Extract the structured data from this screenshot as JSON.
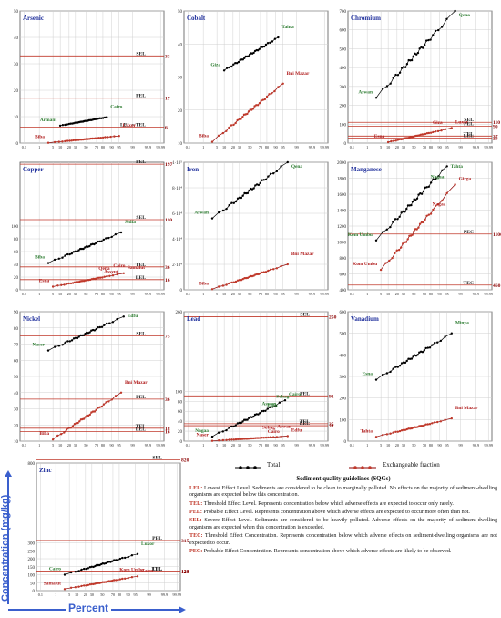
{
  "axis_titles": {
    "y": "Concentration (mg/kg)",
    "x": "Percent"
  },
  "legend": {
    "total": "Total",
    "exchangeable": "Exchangeable fraction"
  },
  "colors": {
    "total": "#000000",
    "exchangeable": "#8b0000",
    "guideline": "#c0392b",
    "title": "#1f2f9c",
    "label_total": "#2e7d32",
    "label_exch": "#b22222",
    "arrow": "#3a5fcd"
  },
  "percent_ticks": [
    "0.1",
    "1",
    "5",
    "10",
    "20",
    "30",
    "50",
    "70",
    "80",
    "90",
    "95",
    "99",
    "99.9",
    "99.99"
  ],
  "sqg": {
    "title": "Sediment quality guidelines (SQGs)",
    "definitions": [
      {
        "code": "LEL:",
        "text": "Lowest Effect Level. Sediments are considered to be clean to marginally polluted. No effects on the majority of sediment-dwelling organisms are expected below this concentration."
      },
      {
        "code": "TEL:",
        "text": "Threshold Effect Level. Represents concentration below which adverse effects are expected to occur only rarely."
      },
      {
        "code": "PEL:",
        "text": "Probable Effect Level. Represents concentration above which adverse effects are expected to occur more often than not."
      },
      {
        "code": "SEL:",
        "text": "Severe Effect Level. Sediments are considered to be heavily polluted. Adverse effects on the majority of sediment-dwelling organisms are expected when this concentration is exceeded."
      },
      {
        "code": "TEC:",
        "text": "Threshold Effect Concentration. Represents concentration below which adverse effects on sediment-dwelling organisms are not expected to occur."
      },
      {
        "code": "PEC:",
        "text": "Probable Effect Concentration. Represents concentration above which adverse effects are likely to be observed."
      }
    ]
  },
  "chart_data": [
    {
      "type": "scatter",
      "title": "Arsenic",
      "ylim": [
        0,
        50
      ],
      "yticks": [
        0,
        10,
        20,
        30,
        40,
        50
      ],
      "ytick_labels": [
        "0",
        "10",
        "20",
        "30",
        "40",
        "50"
      ],
      "guidelines": [
        {
          "name": "SEL",
          "value": 33
        },
        {
          "name": "PEL",
          "value": 17
        },
        {
          "name": "LEL = TEL",
          "value": 6
        }
      ],
      "series": [
        {
          "name": "Total",
          "p_range": [
            10,
            85
          ],
          "y_range": [
            6.6,
            9.8
          ]
        },
        {
          "name": "Exchangeable fraction",
          "p_range": [
            3,
            95
          ],
          "y_range": [
            0.1,
            2.7
          ]
        }
      ],
      "annotations": [
        {
          "text": "Armant",
          "series": 0
        },
        {
          "text": "Cairo",
          "series": 0
        },
        {
          "text": "Biba",
          "series": 1
        },
        {
          "text": "Luxor",
          "series": 1
        }
      ]
    },
    {
      "type": "scatter",
      "title": "Cobalt",
      "ylim": [
        10,
        50
      ],
      "yticks": [
        10,
        20,
        30,
        40,
        50
      ],
      "ytick_labels": [
        "10",
        "20",
        "30",
        "40",
        "50"
      ],
      "guidelines": [],
      "series": [
        {
          "name": "Total",
          "p_range": [
            10,
            92
          ],
          "y_range": [
            32,
            42
          ]
        },
        {
          "name": "Exchangeable fraction",
          "p_range": [
            3,
            95
          ],
          "y_range": [
            10.4,
            28
          ]
        }
      ],
      "annotations": [
        {
          "text": "Giza",
          "series": 0
        },
        {
          "text": "Tahta",
          "series": 0
        },
        {
          "text": "Biba",
          "series": 1
        },
        {
          "text": "Bni Mazar",
          "series": 1
        }
      ]
    },
    {
      "type": "scatter",
      "title": "Chromium",
      "ylim": [
        0,
        700
      ],
      "yticks": [
        0,
        100,
        200,
        300,
        400,
        500,
        600,
        700
      ],
      "ytick_labels": [
        "0",
        "100",
        "200",
        "300",
        "400",
        "500",
        "600",
        "700"
      ],
      "guidelines": [
        {
          "name": "SEL",
          "value": 110
        },
        {
          "name": "PEL",
          "value": 90
        },
        {
          "name": "TEL",
          "value": 37
        },
        {
          "name": "LEL",
          "value": 26
        }
      ],
      "series": [
        {
          "name": "Total",
          "p_range": [
            3,
            98
          ],
          "y_range": [
            240,
            700
          ]
        },
        {
          "name": "Exchangeable fraction",
          "p_range": [
            10,
            97
          ],
          "y_range": [
            5,
            80
          ]
        }
      ],
      "annotations": [
        {
          "text": "Aswan",
          "series": 0
        },
        {
          "text": "Qena",
          "series": 0
        },
        {
          "text": "Esna",
          "series": 1
        },
        {
          "text": "Giza",
          "series": 1
        },
        {
          "text": "Luxor",
          "series": 1
        }
      ]
    },
    {
      "type": "scatter",
      "title": "Copper",
      "ylim": [
        0,
        200
      ],
      "yticks": [
        0,
        20,
        40,
        60,
        80,
        100
      ],
      "ytick_labels": [
        "0",
        "20",
        "40",
        "60",
        "80",
        "100"
      ],
      "guidelines": [
        {
          "name": "PEL",
          "value": 197
        },
        {
          "name": "SEL",
          "value": 110
        },
        {
          "name": "TEL",
          "value": 36
        },
        {
          "name": "LEL",
          "value": 16
        }
      ],
      "series": [
        {
          "name": "Total",
          "p_range": [
            3,
            96
          ],
          "y_range": [
            42,
            90
          ]
        },
        {
          "name": "Exchangeable fraction",
          "p_range": [
            5,
            97
          ],
          "y_range": [
            5,
            26
          ]
        }
      ],
      "annotations": [
        {
          "text": "Biba",
          "series": 0
        },
        {
          "text": "Sidfa",
          "series": 0
        },
        {
          "text": "Esna",
          "series": 1
        },
        {
          "text": "Qena",
          "series": 1
        },
        {
          "text": "Assyut",
          "series": 1
        },
        {
          "text": "Cairo",
          "series": 1
        },
        {
          "text": "Samalut",
          "series": 1
        }
      ]
    },
    {
      "type": "scatter",
      "title": "Iron",
      "ylim": [
        0,
        100000
      ],
      "yticks": [
        0,
        20000,
        40000,
        60000,
        80000,
        100000
      ],
      "ytick_labels": [
        "0",
        "2·10⁴",
        "4·10⁴",
        "6·10⁴",
        "8·10⁴",
        "1·10⁵"
      ],
      "guidelines": [],
      "series": [
        {
          "name": "Total",
          "p_range": [
            3,
            97
          ],
          "y_range": [
            56000,
            100000
          ]
        },
        {
          "name": "Exchangeable fraction",
          "p_range": [
            3,
            97
          ],
          "y_range": [
            500,
            20000
          ]
        }
      ],
      "annotations": [
        {
          "text": "Aswan",
          "series": 0
        },
        {
          "text": "Qena",
          "series": 0
        },
        {
          "text": "Biba",
          "series": 1
        },
        {
          "text": "Bni Mazar",
          "series": 1
        }
      ]
    },
    {
      "type": "scatter",
      "title": "Manganese",
      "ylim": [
        400,
        2000
      ],
      "yticks": [
        400,
        600,
        800,
        1000,
        1200,
        1400,
        1600,
        1800,
        2000
      ],
      "ytick_labels": [
        "400",
        "600",
        "800",
        "1000",
        "1200",
        "1400",
        "1600",
        "1800",
        "2000"
      ],
      "guidelines": [
        {
          "name": "PEC",
          "value": 1100
        },
        {
          "name": "TEC",
          "value": 460
        }
      ],
      "series": [
        {
          "name": "Total",
          "p_range": [
            3,
            95
          ],
          "y_range": [
            1020,
            1950
          ]
        },
        {
          "name": "Exchangeable fraction",
          "p_range": [
            5,
            98
          ],
          "y_range": [
            650,
            1720
          ]
        }
      ],
      "annotations": [
        {
          "text": "Kom Umbu",
          "series": 0
        },
        {
          "text": "Nagaa",
          "series": 0
        },
        {
          "text": "Tahta",
          "series": 0
        },
        {
          "text": "Kom Umbu",
          "series": 1
        },
        {
          "text": "Nagaa",
          "series": 1
        },
        {
          "text": "Girga",
          "series": 1
        }
      ]
    },
    {
      "type": "scatter",
      "title": "Nickel",
      "ylim": [
        10,
        90
      ],
      "yticks": [
        10,
        20,
        30,
        40,
        50,
        60,
        70,
        80,
        90
      ],
      "ytick_labels": [
        "10",
        "20",
        "30",
        "40",
        "50",
        "60",
        "70",
        "80",
        "90"
      ],
      "guidelines": [
        {
          "name": "SEL",
          "value": 75
        },
        {
          "name": "PEL",
          "value": 36
        },
        {
          "name": "TEL",
          "value": 18
        },
        {
          "name": "LEL",
          "value": 16
        }
      ],
      "series": [
        {
          "name": "Total",
          "p_range": [
            3,
            97
          ],
          "y_range": [
            66,
            87
          ]
        },
        {
          "name": "Exchangeable fraction",
          "p_range": [
            5,
            96
          ],
          "y_range": [
            11,
            40
          ]
        }
      ],
      "annotations": [
        {
          "text": "Naser",
          "series": 0
        },
        {
          "text": "Edfu",
          "series": 0
        },
        {
          "text": "Biba",
          "series": 1
        },
        {
          "text": "Bni Mazar",
          "series": 1
        }
      ]
    },
    {
      "type": "scatter",
      "title": "Lead",
      "ylim": [
        0,
        260
      ],
      "yticks": [
        0,
        20,
        40,
        60,
        80,
        100,
        260
      ],
      "ytick_labels": [
        "0",
        "20",
        "40",
        "60",
        "80",
        "100",
        "260"
      ],
      "guidelines": [
        {
          "name": "SEL",
          "value": 250
        },
        {
          "name": "PEL",
          "value": 91
        },
        {
          "name": "TEL",
          "value": 35
        },
        {
          "name": "LEL",
          "value": 31
        }
      ],
      "series": [
        {
          "name": "Total",
          "p_range": [
            3,
            96
          ],
          "y_range": [
            9,
            82
          ]
        },
        {
          "name": "Exchangeable fraction",
          "p_range": [
            3,
            97
          ],
          "y_range": [
            0.5,
            10
          ]
        }
      ],
      "annotations": [
        {
          "text": "Nagaa",
          "series": 0
        },
        {
          "text": "Aswan",
          "series": 0
        },
        {
          "text": "Edfu",
          "series": 0
        },
        {
          "text": "Sohag",
          "series": 0
        },
        {
          "text": "Cairo",
          "series": 0
        },
        {
          "text": "Naser",
          "series": 1
        },
        {
          "text": "Sohag",
          "series": 1
        },
        {
          "text": "Cairo",
          "series": 1
        },
        {
          "text": "Aswan",
          "series": 1
        },
        {
          "text": "Edfu",
          "series": 1
        }
      ]
    },
    {
      "type": "scatter",
      "title": "Vanadium",
      "ylim": [
        0,
        600
      ],
      "yticks": [
        0,
        100,
        200,
        300,
        400,
        500,
        600
      ],
      "ytick_labels": [
        "0",
        "100",
        "200",
        "300",
        "400",
        "500",
        "600"
      ],
      "guidelines": [],
      "series": [
        {
          "name": "Total",
          "p_range": [
            3,
            97
          ],
          "y_range": [
            285,
            500
          ]
        },
        {
          "name": "Exchangeable fraction",
          "p_range": [
            3,
            97
          ],
          "y_range": [
            20,
            105
          ]
        }
      ],
      "annotations": [
        {
          "text": "Esna",
          "series": 0
        },
        {
          "text": "Minya",
          "series": 0
        },
        {
          "text": "Tahta",
          "series": 1
        },
        {
          "text": "Bni Mazar",
          "series": 1
        }
      ]
    },
    {
      "type": "scatter",
      "title": "Zinc",
      "ylim": [
        0,
        800
      ],
      "yticks": [
        0,
        50,
        100,
        150,
        200,
        250,
        300,
        800
      ],
      "ytick_labels": [
        "0",
        "50",
        "100",
        "150",
        "200",
        "250",
        "300",
        "800"
      ],
      "guidelines": [
        {
          "name": "SEL",
          "value": 820
        },
        {
          "name": "PEL",
          "value": 315
        },
        {
          "name": "TEL",
          "value": 123
        },
        {
          "name": "LEL",
          "value": 120
        }
      ],
      "series": [
        {
          "name": "Total",
          "p_range": [
            3,
            96
          ],
          "y_range": [
            100,
            230
          ]
        },
        {
          "name": "Exchangeable fraction",
          "p_range": [
            3,
            96
          ],
          "y_range": [
            10,
            90
          ]
        }
      ],
      "annotations": [
        {
          "text": "Cairo",
          "series": 0
        },
        {
          "text": "Luxor",
          "series": 0
        },
        {
          "text": "Samalut",
          "series": 1
        },
        {
          "text": "Kom Umbu",
          "series": 1
        },
        {
          "text": "Cairo",
          "series": 1
        }
      ]
    }
  ]
}
